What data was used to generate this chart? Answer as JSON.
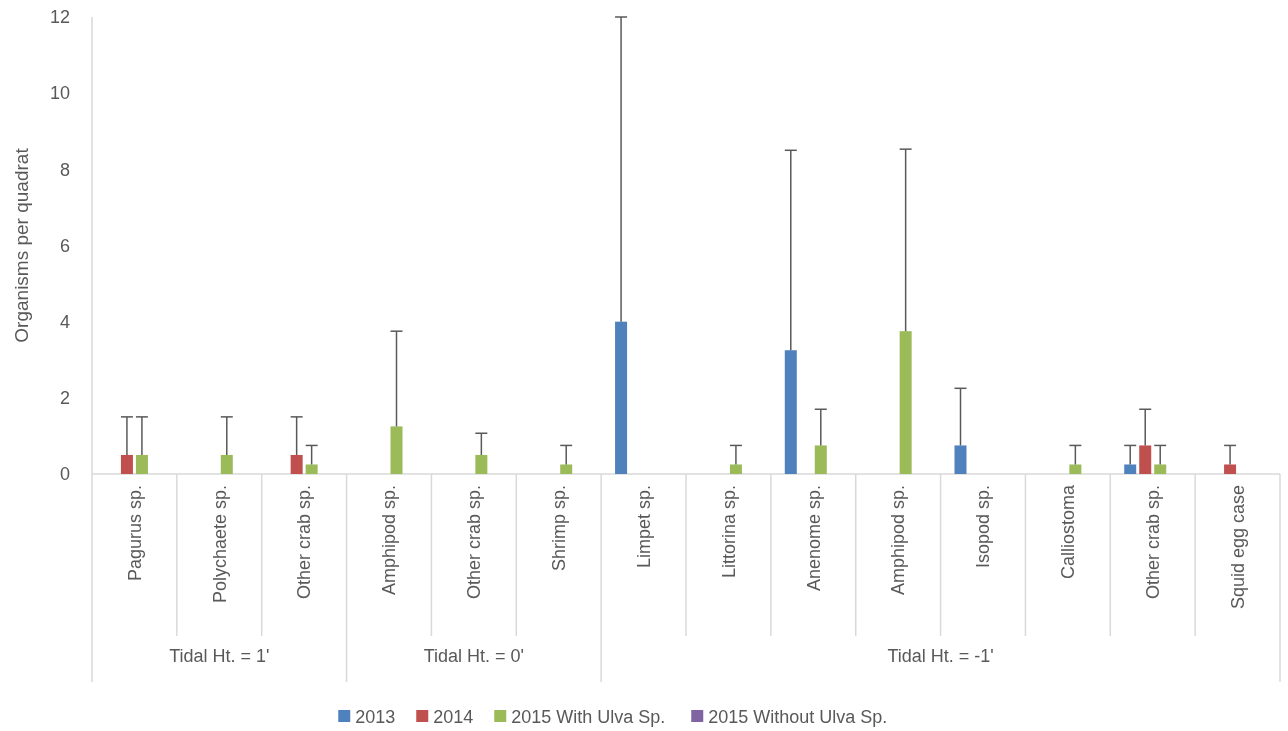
{
  "chart_data": {
    "type": "bar",
    "ylabel": "Organisms per quadrat",
    "categories": [
      "Pagurus sp.",
      "Polychaete sp.",
      "Other crab sp.",
      "Amphipod sp.",
      "Other crab sp.",
      "Shrimp sp.",
      "Limpet sp.",
      "Littorina sp.",
      "Anenome sp.",
      "Amphipod sp.",
      "Isopod sp.",
      "Calliostoma",
      "Other crab sp.",
      "Squid egg case"
    ],
    "annotations": [
      "Tidal Ht. = 1'",
      "Tidal Ht. = 0'",
      "Tidal Ht. = -1'"
    ],
    "series": [
      {
        "name": "2013",
        "color": "#4f81bd",
        "values": [
          null,
          null,
          null,
          null,
          null,
          null,
          4,
          null,
          3.25,
          null,
          0.75,
          null,
          0.25,
          null
        ],
        "errors": [
          null,
          null,
          null,
          null,
          null,
          null,
          [
            4,
            12
          ],
          null,
          [
            3.25,
            8.5
          ],
          null,
          [
            0.75,
            2.25
          ],
          null,
          [
            0.25,
            0.75
          ],
          null
        ]
      },
      {
        "name": "2014",
        "color": "#c0504d",
        "values": [
          0.5,
          null,
          0.5,
          null,
          null,
          null,
          null,
          null,
          null,
          null,
          null,
          null,
          0.75,
          0.25
        ],
        "errors": [
          [
            0.5,
            1.5
          ],
          null,
          [
            0.5,
            1.5
          ],
          null,
          null,
          null,
          null,
          null,
          null,
          null,
          null,
          null,
          [
            0.75,
            1.7
          ],
          [
            0.25,
            0.75
          ]
        ]
      },
      {
        "name": "2015 With Ulva Sp.",
        "color": "#9bbb59",
        "values": [
          0.5,
          0.5,
          0.25,
          1.25,
          0.5,
          0.25,
          null,
          0.25,
          0.75,
          3.75,
          null,
          0.25,
          0.25,
          null
        ],
        "errors": [
          [
            0.5,
            1.5
          ],
          [
            0.5,
            1.5
          ],
          [
            0.25,
            0.75
          ],
          [
            1.25,
            3.75
          ],
          [
            0.5,
            1.07
          ],
          [
            0.25,
            0.75
          ],
          null,
          [
            0.25,
            0.75
          ],
          [
            0.75,
            1.7
          ],
          [
            3.75,
            8.53
          ],
          null,
          [
            0.25,
            0.75
          ],
          [
            0.25,
            0.75
          ],
          null
        ]
      },
      {
        "name": "2015 Without Ulva Sp.",
        "color": "#8064a2",
        "values": [
          null,
          null,
          null,
          null,
          null,
          null,
          null,
          null,
          null,
          null,
          null,
          null,
          null,
          null
        ]
      }
    ],
    "ylim": [
      0,
      12
    ],
    "yticks": [
      0,
      2,
      4,
      6,
      8,
      10,
      12
    ],
    "legend": "bottom",
    "grid": false
  }
}
